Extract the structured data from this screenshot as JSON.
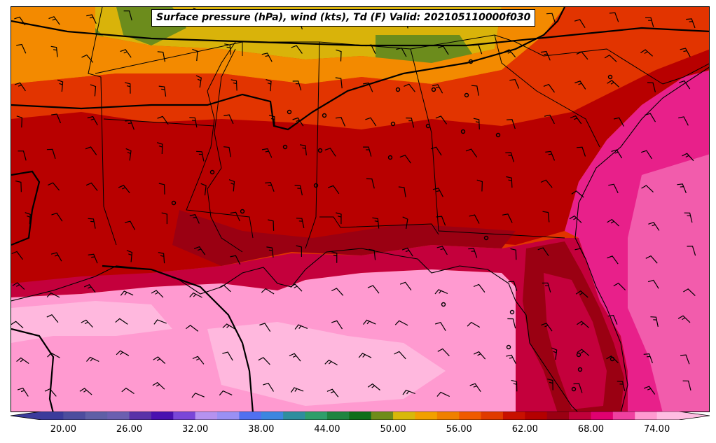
{
  "title": "Surface pressure (hPa), wind (kts), Td (F) Valid: 202105110000f030",
  "colorbar": {
    "min": 18,
    "max": 76,
    "step": 2,
    "tick_labels": [
      "20.00",
      "26.00",
      "32.00",
      "38.00",
      "44.00",
      "50.00",
      "56.00",
      "62.00",
      "68.00",
      "74.00"
    ],
    "tick_values": [
      20,
      26,
      32,
      38,
      44,
      50,
      56,
      62,
      68,
      74
    ],
    "colors": [
      "#3b3b9b",
      "#4d4d9e",
      "#5f5fa6",
      "#6b5fb0",
      "#5a32a8",
      "#4a10b0",
      "#7a46d8",
      "#b592f0",
      "#9a90f4",
      "#5070f0",
      "#3c86e0",
      "#2e8e9e",
      "#2e9e6a",
      "#1e8440",
      "#0f6e1a",
      "#6f8c1a",
      "#d8b80a",
      "#f2a000",
      "#f08000",
      "#f05a00",
      "#e03a00",
      "#c81000",
      "#b40000",
      "#9a0012",
      "#c0003a",
      "#e00070",
      "#f040a0",
      "#ff9ad0",
      "#ffbde2"
    ]
  },
  "legend_colors": {
    "dewpoint_74_plus": "#ff9ad0",
    "dewpoint_70": "#e8208a",
    "dewpoint_66": "#c4003c",
    "dewpoint_62": "#b80000",
    "dewpoint_58": "#e23400",
    "dewpoint_54": "#f38a00",
    "dewpoint_50": "#d9b30a",
    "dewpoint_46": "#6c8c1c"
  }
}
